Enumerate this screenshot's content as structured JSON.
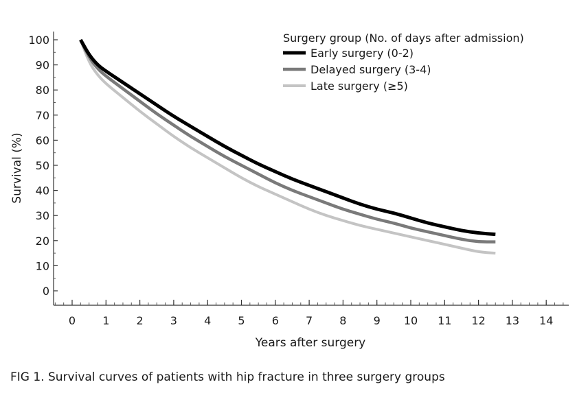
{
  "chart_data": {
    "type": "line",
    "xlabel": "Years after surgery",
    "ylabel": "Survival (%)",
    "xlim": [
      0,
      14
    ],
    "ylim": [
      0,
      100
    ],
    "x_ticks": [
      0,
      1,
      2,
      3,
      4,
      5,
      6,
      7,
      8,
      9,
      10,
      11,
      12,
      13,
      14
    ],
    "y_ticks": [
      0,
      10,
      20,
      30,
      40,
      50,
      60,
      70,
      80,
      90,
      100
    ],
    "grid": false,
    "legend": {
      "title": "Surgery group (No. of days after admission)",
      "placement": "top-right"
    },
    "series": [
      {
        "name": "Early surgery (0-2)",
        "color": "#000000",
        "x": [
          0.25,
          0.5,
          0.75,
          1,
          1.5,
          2,
          2.5,
          3,
          3.5,
          4,
          4.5,
          5,
          5.5,
          6,
          6.5,
          7,
          7.5,
          8,
          8.5,
          9,
          9.5,
          10,
          10.5,
          11,
          11.5,
          12,
          12.5
        ],
        "y": [
          100,
          94,
          90,
          87.5,
          83,
          78.5,
          74,
          69.5,
          65.5,
          61.5,
          57.5,
          54,
          50.5,
          47.5,
          44.5,
          42,
          39.5,
          37,
          34.5,
          32.5,
          31,
          29,
          27,
          25.5,
          24,
          23,
          22.5
        ]
      },
      {
        "name": "Delayed surgery (3-4)",
        "color": "#7a7a7a",
        "x": [
          0.25,
          0.5,
          0.75,
          1,
          1.5,
          2,
          2.5,
          3,
          3.5,
          4,
          4.5,
          5,
          5.5,
          6,
          6.5,
          7,
          7.5,
          8,
          8.5,
          9,
          9.5,
          10,
          10.5,
          11,
          11.5,
          12,
          12.5
        ],
        "y": [
          100,
          93,
          88.5,
          85.5,
          80.5,
          75.5,
          70.5,
          66,
          61.5,
          57.5,
          53.5,
          50,
          46.5,
          43,
          40,
          37.5,
          35,
          32.5,
          30.5,
          28.5,
          27,
          25,
          23.5,
          22,
          20.5,
          19.5,
          19.5
        ]
      },
      {
        "name": "Late surgery (≥5)",
        "color": "#c4c4c4",
        "x": [
          0.25,
          0.5,
          0.75,
          1,
          1.5,
          2,
          2.5,
          3,
          3.5,
          4,
          4.5,
          5,
          5.5,
          6,
          6.5,
          7,
          7.5,
          8,
          8.5,
          9,
          9.5,
          10,
          10.5,
          11,
          11.5,
          12,
          12.5
        ],
        "y": [
          100,
          91,
          86,
          82.5,
          77,
          71.5,
          66.5,
          61.5,
          57,
          53,
          49,
          45,
          41.5,
          38.5,
          35.5,
          32.5,
          30,
          28,
          26,
          24.5,
          23,
          21.5,
          20,
          18.5,
          17,
          15.5,
          15
        ]
      }
    ]
  },
  "caption": "FIG 1. Survival curves of patients with hip fracture in three surgery groups"
}
